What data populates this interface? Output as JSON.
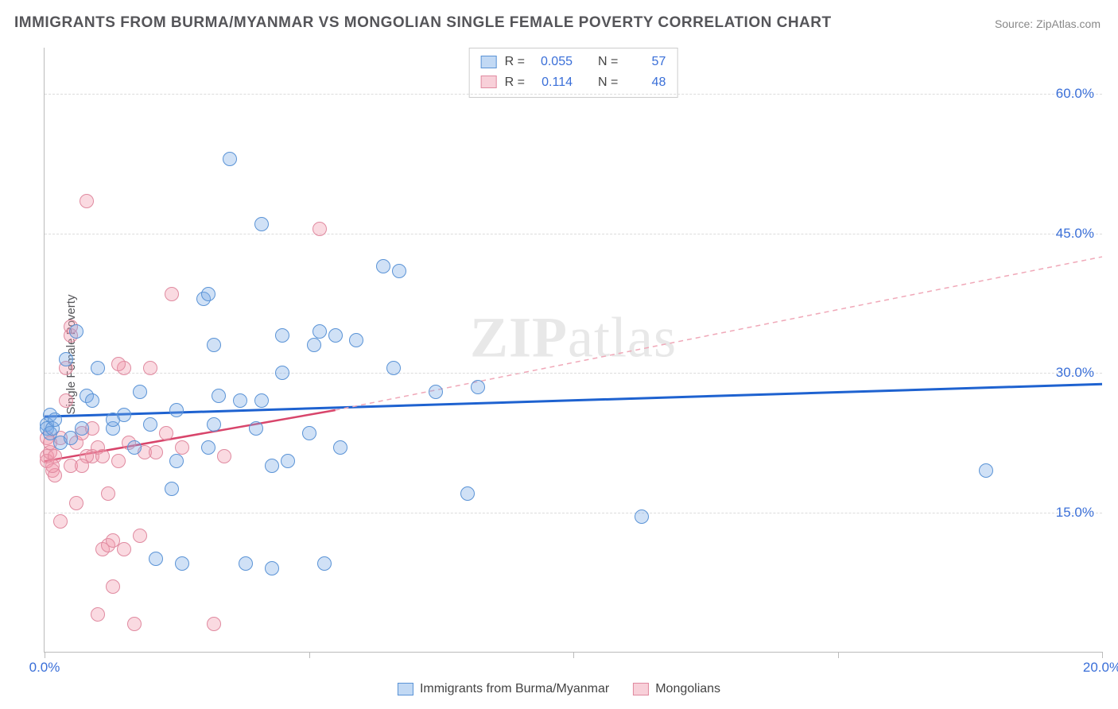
{
  "title": "IMMIGRANTS FROM BURMA/MYANMAR VS MONGOLIAN SINGLE FEMALE POVERTY CORRELATION CHART",
  "source": "Source: ZipAtlas.com",
  "ylabel": "Single Female Poverty",
  "watermark_1": "ZIP",
  "watermark_2": "atlas",
  "chart": {
    "type": "scatter",
    "background_color": "#ffffff",
    "grid_color": "#dcdcdc",
    "xlim": [
      0,
      20
    ],
    "ylim": [
      0,
      65
    ],
    "xticks": [
      0,
      5,
      10,
      15,
      20
    ],
    "xtick_labels": [
      "0.0%",
      "",
      "",
      "",
      "20.0%"
    ],
    "yticks": [
      15,
      30,
      45,
      60
    ],
    "ytick_labels": [
      "15.0%",
      "30.0%",
      "45.0%",
      "60.0%"
    ],
    "axis_color": "#bbbbbb",
    "tick_label_color": "#3a6fd8",
    "tick_label_fontsize": 17,
    "title_fontsize": 19,
    "title_color": "#555559",
    "marker_size": 18,
    "marker_opacity": 0.35,
    "series": [
      {
        "name": "Immigrants from Burma/Myanmar",
        "color_fill": "#78aae6",
        "color_stroke": "#5a93d6",
        "R": "0.055",
        "N": "57",
        "trend": {
          "type": "linear",
          "color": "#1e62d0",
          "width": 3,
          "y_at_x0": 25.3,
          "y_at_xmax": 28.8
        },
        "points": [
          [
            0.05,
            24.5
          ],
          [
            0.05,
            24.0
          ],
          [
            0.1,
            25.5
          ],
          [
            0.1,
            23.5
          ],
          [
            0.15,
            24.0
          ],
          [
            0.2,
            25.0
          ],
          [
            0.8,
            27.5
          ],
          [
            0.6,
            34.5
          ],
          [
            0.9,
            27.0
          ],
          [
            1.3,
            24.0
          ],
          [
            1.3,
            25.0
          ],
          [
            0.4,
            31.5
          ],
          [
            1.8,
            28.0
          ],
          [
            2.1,
            10.0
          ],
          [
            2.4,
            17.5
          ],
          [
            2.5,
            20.5
          ],
          [
            2.5,
            26.0
          ],
          [
            2.6,
            9.5
          ],
          [
            3.0,
            38.0
          ],
          [
            3.1,
            22.0
          ],
          [
            3.1,
            38.5
          ],
          [
            3.2,
            24.5
          ],
          [
            3.2,
            33.0
          ],
          [
            3.3,
            27.5
          ],
          [
            3.5,
            53.0
          ],
          [
            3.7,
            27.0
          ],
          [
            3.8,
            9.5
          ],
          [
            4.0,
            24.0
          ],
          [
            4.1,
            27.0
          ],
          [
            4.1,
            46.0
          ],
          [
            4.3,
            20.0
          ],
          [
            4.3,
            9.0
          ],
          [
            4.5,
            30.0
          ],
          [
            4.5,
            34.0
          ],
          [
            4.6,
            20.5
          ],
          [
            5.0,
            23.5
          ],
          [
            5.1,
            33.0
          ],
          [
            5.2,
            34.5
          ],
          [
            5.3,
            9.5
          ],
          [
            5.5,
            34.0
          ],
          [
            5.6,
            22.0
          ],
          [
            5.9,
            33.5
          ],
          [
            6.4,
            41.5
          ],
          [
            6.6,
            30.5
          ],
          [
            6.7,
            41.0
          ],
          [
            7.4,
            28.0
          ],
          [
            8.0,
            17.0
          ],
          [
            8.2,
            28.5
          ],
          [
            11.3,
            14.5
          ],
          [
            17.8,
            19.5
          ],
          [
            0.3,
            22.5
          ],
          [
            1.0,
            30.5
          ],
          [
            1.5,
            25.5
          ],
          [
            1.7,
            22.0
          ],
          [
            2.0,
            24.5
          ],
          [
            0.7,
            24.0
          ],
          [
            0.5,
            23.0
          ]
        ]
      },
      {
        "name": "Mongolians",
        "color_fill": "#f096aa",
        "color_stroke": "#e08aa0",
        "R": "0.114",
        "N": "48",
        "trend": {
          "type": "piecewise",
          "color_solid": "#d8456b",
          "color_dash": "#f0a8b8",
          "width_solid": 2.5,
          "width_dash": 1.5,
          "segments": [
            {
              "x1": 0,
              "y1": 20.5,
              "x2": 5.5,
              "y2": 26.0,
              "style": "solid"
            },
            {
              "x1": 5.5,
              "y1": 26.0,
              "x2": 20,
              "y2": 42.5,
              "style": "dash"
            }
          ]
        },
        "points": [
          [
            0.05,
            21.0
          ],
          [
            0.05,
            23.0
          ],
          [
            0.05,
            20.5
          ],
          [
            0.1,
            21.5
          ],
          [
            0.1,
            22.5
          ],
          [
            0.15,
            19.5
          ],
          [
            0.2,
            19.0
          ],
          [
            0.3,
            14.0
          ],
          [
            0.3,
            23.0
          ],
          [
            0.4,
            27.0
          ],
          [
            0.4,
            30.5
          ],
          [
            0.5,
            34.0
          ],
          [
            0.5,
            35.0
          ],
          [
            0.6,
            22.5
          ],
          [
            0.7,
            23.5
          ],
          [
            0.8,
            48.5
          ],
          [
            0.9,
            21.0
          ],
          [
            1.0,
            4.0
          ],
          [
            1.1,
            11.0
          ],
          [
            1.2,
            11.5
          ],
          [
            1.2,
            17.0
          ],
          [
            1.3,
            7.0
          ],
          [
            1.3,
            12.0
          ],
          [
            1.4,
            20.5
          ],
          [
            1.5,
            30.5
          ],
          [
            1.5,
            11.0
          ],
          [
            1.6,
            22.5
          ],
          [
            1.7,
            3.0
          ],
          [
            1.8,
            12.5
          ],
          [
            1.9,
            21.5
          ],
          [
            2.0,
            30.5
          ],
          [
            2.1,
            21.5
          ],
          [
            2.3,
            23.5
          ],
          [
            2.4,
            38.5
          ],
          [
            2.6,
            22.0
          ],
          [
            3.2,
            3.0
          ],
          [
            3.4,
            21.0
          ],
          [
            5.2,
            45.5
          ],
          [
            0.6,
            16.0
          ],
          [
            0.8,
            21.0
          ],
          [
            0.9,
            24.0
          ],
          [
            1.0,
            22.0
          ],
          [
            1.1,
            21.0
          ],
          [
            1.4,
            31.0
          ],
          [
            0.5,
            20.0
          ],
          [
            0.2,
            21.0
          ],
          [
            0.7,
            20.0
          ],
          [
            0.15,
            20.0
          ]
        ]
      }
    ],
    "legend_top": {
      "border_color": "#cccccc",
      "rows": [
        {
          "swatch": "blue",
          "R_label": "R =",
          "R": "0.055",
          "N_label": "N =",
          "N": "57"
        },
        {
          "swatch": "pink",
          "R_label": "R =",
          "R": "0.114",
          "N_label": "N =",
          "N": "48"
        }
      ]
    },
    "legend_bottom": [
      {
        "swatch": "blue",
        "label": "Immigrants from Burma/Myanmar"
      },
      {
        "swatch": "pink",
        "label": "Mongolians"
      }
    ]
  }
}
